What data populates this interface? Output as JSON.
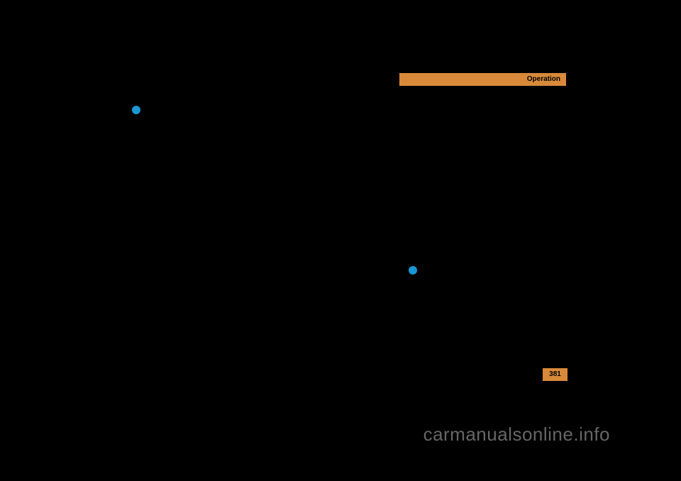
{
  "header": {
    "label": "Operation",
    "bar_color": "#d88a3a",
    "text_color": "#000000"
  },
  "bullets": {
    "dot_color": "#1b96d4"
  },
  "page_number": {
    "value": "381",
    "background_color": "#d88a3a",
    "text_color": "#000000"
  },
  "watermark": {
    "text": "carmanualsonline.info",
    "color": "#666666"
  },
  "background_color": "#000000"
}
